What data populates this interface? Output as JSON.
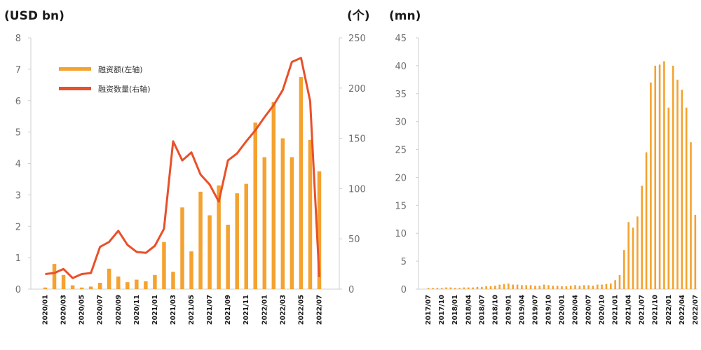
{
  "colors": {
    "bar": "#f4a230",
    "line": "#e8502a",
    "axis": "#cfcfcf",
    "text": "#1a1a1a",
    "tick": "#6e6e6e"
  },
  "chart_data": [
    {
      "type": "bar+line",
      "left_unit": "(USD bn)",
      "right_unit": "(个)",
      "ylim_left": [
        0,
        8
      ],
      "yticks_left": [
        "0",
        "1",
        "2",
        "3",
        "4",
        "5",
        "6",
        "7",
        "8"
      ],
      "ylim_right": [
        0,
        250
      ],
      "yticks_right": [
        "0",
        "50",
        "100",
        "150",
        "200",
        "250"
      ],
      "x": [
        "2020/01",
        "2020/02",
        "2020/03",
        "2020/04",
        "2020/05",
        "2020/06",
        "2020/07",
        "2020/08",
        "2020/09",
        "2020/10",
        "2020/11",
        "2020/12",
        "2021/01",
        "2021/02",
        "2021/03",
        "2021/04",
        "2021/05",
        "2021/06",
        "2021/07",
        "2021/08",
        "2021/09",
        "2021/10",
        "2021/11",
        "2021/12",
        "2022/01",
        "2022/02",
        "2022/03",
        "2022/04",
        "2022/05",
        "2022/06",
        "2022/07"
      ],
      "xtick_labels": [
        "2020/01",
        "2020/03",
        "2020/05",
        "2020/07",
        "2020/09",
        "2020/11",
        "2021/01",
        "2021/03",
        "2021/05",
        "2021/07",
        "2021/09",
        "2021/11",
        "2022/01",
        "2022/03",
        "2022/05",
        "2022/07"
      ],
      "legend": {
        "bar": "融资额(左轴)",
        "line": "融资数量(右轴)"
      },
      "series": [
        {
          "name": "融资额(左轴)",
          "type": "bar",
          "axis": "left",
          "values": [
            0.05,
            0.8,
            0.45,
            0.12,
            0.05,
            0.08,
            0.2,
            0.65,
            0.4,
            0.22,
            0.3,
            0.25,
            0.45,
            1.5,
            0.55,
            2.6,
            1.2,
            3.1,
            2.35,
            3.3,
            2.05,
            3.05,
            3.35,
            5.3,
            4.2,
            5.95,
            4.8,
            4.2,
            6.75,
            4.75,
            3.75
          ]
        },
        {
          "name": "融资数量(右轴)",
          "type": "line",
          "axis": "right",
          "values": [
            15,
            16,
            20,
            11,
            15,
            16,
            42,
            47,
            58,
            44,
            37,
            36,
            43,
            60,
            147,
            128,
            136,
            114,
            104,
            87,
            128,
            135,
            147,
            158,
            171,
            183,
            198,
            226,
            230,
            187,
            12
          ]
        }
      ]
    },
    {
      "type": "bar",
      "left_unit": "(mn)",
      "ylim": [
        0,
        45
      ],
      "yticks": [
        "0",
        "5",
        "10",
        "15",
        "20",
        "25",
        "30",
        "35",
        "40",
        "45"
      ],
      "x": [
        "2017/07",
        "2017/08",
        "2017/09",
        "2017/10",
        "2017/11",
        "2017/12",
        "2018/01",
        "2018/02",
        "2018/03",
        "2018/04",
        "2018/05",
        "2018/06",
        "2018/07",
        "2018/08",
        "2018/09",
        "2018/10",
        "2018/11",
        "2018/12",
        "2019/01",
        "2019/02",
        "2019/03",
        "2019/04",
        "2019/05",
        "2019/06",
        "2019/07",
        "2019/08",
        "2019/09",
        "2019/10",
        "2019/11",
        "2019/12",
        "2020/01",
        "2020/02",
        "2020/03",
        "2020/04",
        "2020/05",
        "2020/06",
        "2020/07",
        "2020/08",
        "2020/09",
        "2020/10",
        "2020/11",
        "2020/12",
        "2021/01",
        "2021/02",
        "2021/03",
        "2021/04",
        "2021/05",
        "2021/06",
        "2021/07",
        "2021/08",
        "2021/09",
        "2021/10",
        "2021/11",
        "2021/12",
        "2022/01",
        "2022/02",
        "2022/03",
        "2022/04",
        "2022/05",
        "2022/06",
        "2022/07"
      ],
      "xtick_labels": [
        "2017/07",
        "2017/10",
        "2018/01",
        "2018/04",
        "2018/07",
        "2018/10",
        "2019/01",
        "2019/04",
        "2019/07",
        "2019/10",
        "2020/01",
        "2020/04",
        "2020/07",
        "2020/10",
        "2021/01",
        "2021/04",
        "2021/07",
        "2021/10",
        "2022/01",
        "2022/04",
        "2022/07"
      ],
      "series": [
        {
          "type": "bar",
          "values": [
            0.2,
            0.2,
            0.2,
            0.2,
            0.3,
            0.3,
            0.2,
            0.2,
            0.3,
            0.3,
            0.3,
            0.4,
            0.4,
            0.5,
            0.5,
            0.6,
            0.8,
            0.9,
            1.0,
            0.8,
            0.8,
            0.7,
            0.7,
            0.7,
            0.6,
            0.6,
            0.8,
            0.7,
            0.6,
            0.6,
            0.5,
            0.5,
            0.6,
            0.7,
            0.6,
            0.7,
            0.7,
            0.6,
            0.8,
            0.8,
            0.9,
            1.0,
            1.6,
            2.5,
            7.0,
            12.0,
            11.0,
            13.0,
            18.5,
            24.5,
            37.0,
            40.0,
            40.2,
            40.8,
            32.5,
            40.0,
            37.5,
            35.7,
            32.5,
            26.3,
            13.3
          ]
        }
      ]
    }
  ]
}
